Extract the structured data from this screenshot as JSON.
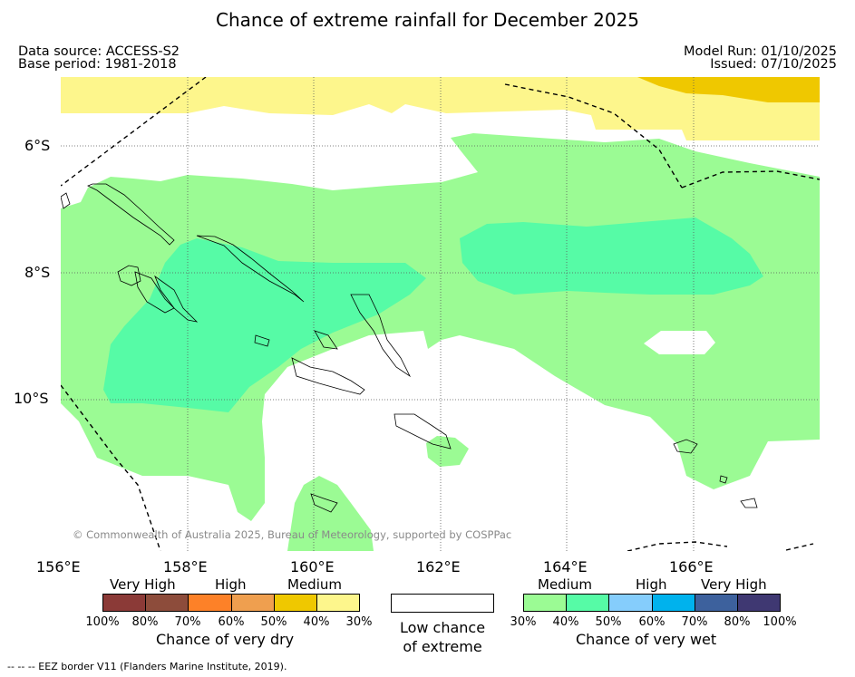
{
  "title": "Chance of extreme rainfall for December 2025",
  "meta": {
    "data_source": "Data source: ACCESS-S2",
    "base_period": "Base period: 1981-2018",
    "model_run": "Model Run: 01/10/2025",
    "issued": "Issued: 07/10/2025"
  },
  "axes": {
    "lat_labels": [
      "6°S",
      "8°S",
      "10°S"
    ],
    "lon_labels": [
      "156°E",
      "158°E",
      "160°E",
      "162°E",
      "164°E",
      "166°E"
    ]
  },
  "copyright": "© Commonwealth of Australia 2025, Bureau of Meteorology, supported by COSPPac",
  "legend": {
    "dry": {
      "headers": [
        "Very High",
        "High",
        "Medium"
      ],
      "colors": [
        "#8b3a37",
        "#8d4c3b",
        "#fd8128",
        "#ef9f4f",
        "#efc800",
        "#fdf68c"
      ],
      "ticks": [
        "100%",
        "80%",
        "70%",
        "60%",
        "50%",
        "40%",
        "30%"
      ],
      "caption": "Chance of very dry"
    },
    "low": {
      "caption_line1": "Low chance",
      "caption_line2": "of extreme"
    },
    "wet": {
      "headers": [
        "Medium",
        "High",
        "Very High"
      ],
      "colors": [
        "#9bfb94",
        "#56fba6",
        "#85cdfc",
        "#00b2ed",
        "#3d619d",
        "#3f3872"
      ],
      "ticks": [
        "30%",
        "40%",
        "50%",
        "60%",
        "70%",
        "80%",
        "100%"
      ],
      "caption": "Chance of very wet"
    }
  },
  "footer": "--  --  -- EEZ border V11 (Flanders Marine Institute, 2019).",
  "colors": {
    "yellow_light": "#fdf68c",
    "yellow_dark": "#efc800",
    "green_light": "#9bfb94",
    "green_medium": "#56fba6"
  }
}
